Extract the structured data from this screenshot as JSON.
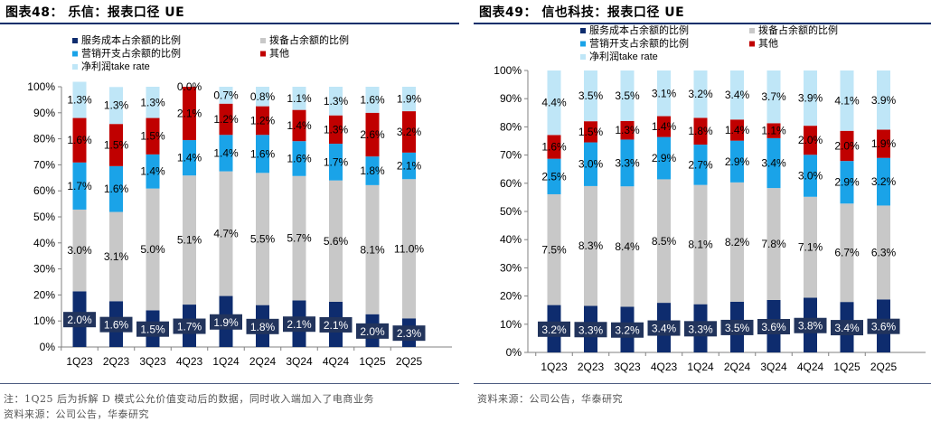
{
  "charts": [
    {
      "title": "图表48： 乐信：报表口径 UE",
      "note_lines": [
        "注：1Q25 后为拆解 D 模式公允价值变动后的数据，同时收入端加入了电商业务",
        "资料来源：公司公告，华泰研究"
      ]
    },
    {
      "title": "图表49： 信也科技：报表口径 UE",
      "note_lines": [
        "资料来源：公司公告，华泰研究"
      ]
    }
  ],
  "chart_data": [
    {
      "type": "bar",
      "stacked": true,
      "categories": [
        "1Q23",
        "2Q23",
        "3Q23",
        "4Q23",
        "1Q24",
        "2Q24",
        "3Q24",
        "4Q24",
        "1Q25",
        "2Q25"
      ],
      "series": [
        {
          "name": "服务成本占余额的比例",
          "color": "#0e2c6e",
          "values": [
            2.0,
            1.6,
            1.5,
            1.7,
            1.9,
            1.8,
            2.1,
            2.1,
            2.0,
            2.3
          ],
          "labels": [
            "2.0%",
            "1.6%",
            "1.5%",
            "1.7%",
            "1.9%",
            "1.8%",
            "2.1%",
            "2.1%",
            "2.0%",
            "2.3%"
          ]
        },
        {
          "name": "拨备占余额的比例",
          "color": "#c8c8c8",
          "values": [
            3.0,
            3.1,
            5.0,
            5.1,
            4.7,
            5.5,
            5.7,
            5.6,
            8.1,
            11.0
          ],
          "labels": [
            "3.0%",
            "3.1%",
            "5.0%",
            "5.1%",
            "4.7%",
            "5.5%",
            "5.7%",
            "5.6%",
            "8.1%",
            "11.0%"
          ]
        },
        {
          "name": "营销开支占余额的比例",
          "color": "#1aa3e8",
          "values": [
            1.7,
            1.6,
            1.4,
            1.4,
            1.4,
            1.6,
            1.6,
            1.7,
            1.8,
            2.1
          ],
          "labels": [
            "1.7%",
            "1.6%",
            "1.4%",
            "1.4%",
            "1.4%",
            "1.6%",
            "1.6%",
            "1.7%",
            "1.8%",
            "2.1%"
          ]
        },
        {
          "name": "其他",
          "color": "#c00000",
          "values": [
            1.6,
            1.5,
            1.5,
            2.1,
            1.2,
            1.2,
            1.4,
            1.3,
            2.6,
            3.2
          ],
          "labels": [
            "1.6%",
            "1.5%",
            "1.5%",
            "2.1%",
            "1.2%",
            "1.2%",
            "1.4%",
            "1.3%",
            "2.6%",
            "3.2%"
          ]
        },
        {
          "name": "净利润take rate",
          "color": "#bfe6f7",
          "values": [
            1.3,
            1.3,
            1.3,
            0.0,
            0.7,
            0.8,
            1.1,
            1.3,
            1.6,
            1.9
          ],
          "labels": [
            "1.3%",
            "1.3%",
            "1.3%",
            "0.0%",
            "0.7%",
            "0.8%",
            "1.1%",
            "1.3%",
            "1.6%",
            "1.9%"
          ]
        }
      ],
      "shares_pct": [
        [
          21.4,
          31.4,
          18.1,
          17.1,
          13.9
        ],
        [
          17.6,
          34.3,
          17.6,
          16.2,
          14.2
        ],
        [
          14.1,
          46.8,
          13.1,
          14.0,
          12.0
        ],
        [
          16.3,
          49.6,
          13.6,
          20.5,
          0.0
        ],
        [
          19.6,
          47.9,
          14.0,
          12.0,
          6.5
        ],
        [
          16.1,
          50.8,
          14.6,
          11.0,
          7.5
        ],
        [
          17.9,
          47.8,
          13.4,
          12.0,
          8.9
        ],
        [
          17.4,
          46.6,
          14.1,
          10.9,
          11.0
        ],
        [
          12.6,
          49.6,
          11.0,
          16.8,
          10.0
        ],
        [
          11.0,
          53.5,
          10.2,
          15.9,
          9.4
        ]
      ],
      "ylim": [
        0,
        100
      ],
      "yticks": [
        "0%",
        "10%",
        "20%",
        "30%",
        "40%",
        "50%",
        "60%",
        "70%",
        "80%",
        "90%",
        "100%"
      ],
      "grid": false,
      "legend": "top-left"
    },
    {
      "type": "bar",
      "stacked": true,
      "categories": [
        "1Q23",
        "2Q23",
        "3Q23",
        "4Q23",
        "1Q24",
        "2Q24",
        "3Q24",
        "4Q24",
        "1Q25",
        "2Q25"
      ],
      "series": [
        {
          "name": "服务成本占余额的比例",
          "color": "#0e2c6e",
          "values": [
            3.2,
            3.3,
            3.2,
            3.4,
            3.3,
            3.5,
            3.6,
            3.8,
            3.4,
            3.6
          ],
          "labels": [
            "3.2%",
            "3.3%",
            "3.2%",
            "3.4%",
            "3.3%",
            "3.5%",
            "3.6%",
            "3.8%",
            "3.4%",
            "3.6%"
          ]
        },
        {
          "name": "拨备占余额的比例",
          "color": "#c8c8c8",
          "values": [
            7.5,
            8.3,
            8.4,
            8.5,
            8.1,
            8.2,
            7.8,
            7.1,
            6.7,
            6.3
          ],
          "labels": [
            "7.5%",
            "8.3%",
            "8.4%",
            "8.5%",
            "8.1%",
            "8.2%",
            "7.8%",
            "7.1%",
            "6.7%",
            "6.3%"
          ]
        },
        {
          "name": "营销开支占余额的比例",
          "color": "#1aa3e8",
          "values": [
            2.5,
            3.0,
            3.3,
            2.9,
            2.7,
            2.9,
            3.4,
            3.0,
            2.9,
            3.2
          ],
          "labels": [
            "2.5%",
            "3.0%",
            "3.3%",
            "2.9%",
            "2.7%",
            "2.9%",
            "3.4%",
            "3.0%",
            "2.9%",
            "3.2%"
          ]
        },
        {
          "name": "其他",
          "color": "#c00000",
          "values": [
            1.6,
            1.5,
            1.3,
            1.4,
            1.8,
            1.4,
            1.1,
            2.0,
            2.0,
            1.9
          ],
          "labels": [
            "1.6%",
            "1.5%",
            "1.3%",
            "1.4%",
            "1.8%",
            "1.4%",
            "1.1%",
            "2.0%",
            "2.0%",
            "1.9%"
          ]
        },
        {
          "name": "净利润take rate",
          "color": "#bfe6f7",
          "values": [
            4.4,
            3.5,
            3.5,
            3.1,
            3.2,
            3.4,
            3.7,
            3.9,
            4.1,
            3.9
          ],
          "labels": [
            "4.4%",
            "3.5%",
            "3.5%",
            "3.1%",
            "3.2%",
            "3.4%",
            "3.7%",
            "3.9%",
            "4.1%",
            "3.9%"
          ]
        }
      ],
      "shares_pct": [
        [
          16.8,
          39.3,
          12.6,
          8.4,
          22.9
        ],
        [
          16.5,
          42.5,
          15.5,
          7.5,
          18.0
        ],
        [
          16.2,
          42.7,
          16.6,
          6.6,
          17.9
        ],
        [
          17.6,
          43.8,
          15.0,
          7.4,
          16.2
        ],
        [
          17.1,
          42.3,
          14.3,
          9.5,
          16.8
        ],
        [
          18.0,
          42.3,
          14.8,
          7.5,
          17.4
        ],
        [
          18.6,
          39.7,
          17.7,
          5.3,
          18.7
        ],
        [
          19.4,
          35.8,
          14.9,
          10.3,
          19.6
        ],
        [
          17.9,
          34.9,
          15.1,
          10.7,
          21.4
        ],
        [
          18.8,
          33.3,
          16.9,
          10.0,
          21.0
        ]
      ],
      "ylim": [
        0,
        100
      ],
      "yticks": [
        "0%",
        "10%",
        "20%",
        "30%",
        "40%",
        "50%",
        "60%",
        "70%",
        "80%",
        "90%",
        "100%"
      ],
      "grid": false,
      "legend": "top-left"
    }
  ]
}
